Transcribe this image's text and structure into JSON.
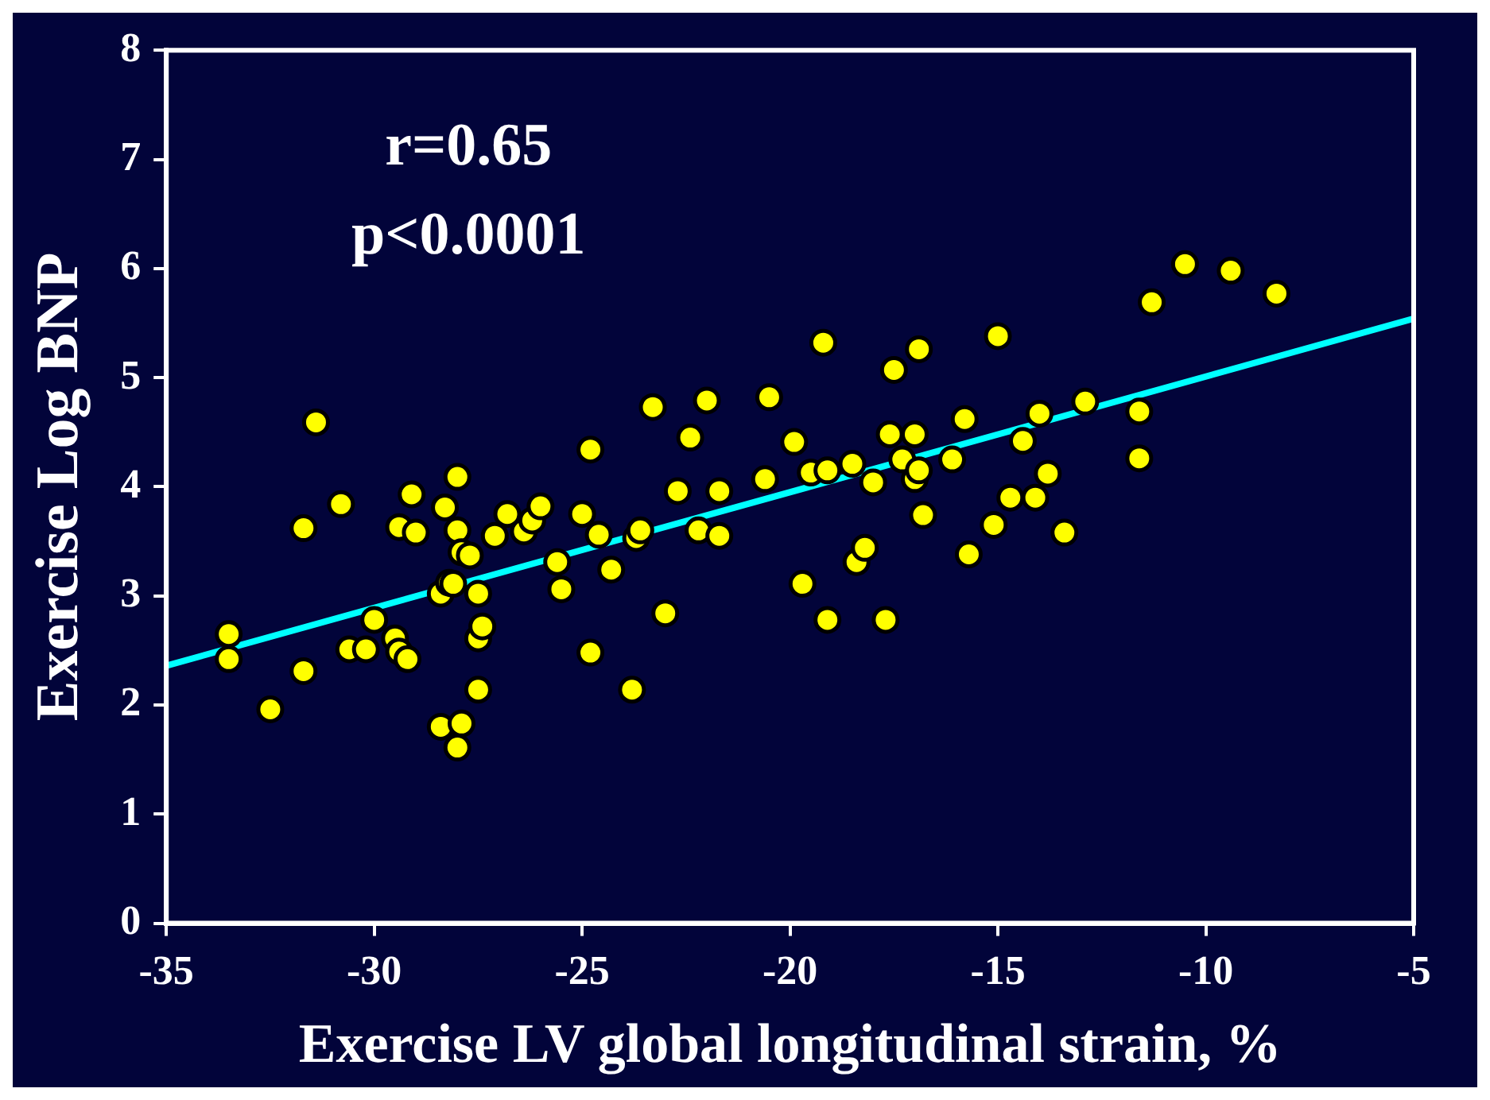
{
  "chart_data": {
    "type": "scatter",
    "xlabel": "Exercise LV global longitudinal strain, %",
    "ylabel": "Exercise Log BNP",
    "annotations": [
      "r=0.65",
      "p<0.0001"
    ],
    "xlim": [
      -35,
      -5
    ],
    "xticks": [
      -35,
      -30,
      -25,
      -20,
      -15,
      -10,
      -5
    ],
    "ylim": [
      0,
      8
    ],
    "yticks": [
      0,
      1,
      2,
      3,
      4,
      5,
      6,
      7,
      8
    ],
    "grid": false,
    "legend": false,
    "marker": "circle",
    "series": [
      {
        "color": "#ffff00",
        "x": [
          -33.5,
          -33.5,
          -32.5,
          -31.7,
          -31.7,
          -31.4,
          -30.8,
          -30.6,
          -30.2,
          -30.0,
          -29.5,
          -29.4,
          -29.4,
          -29.2,
          -29.1,
          -29.0,
          -28.4,
          -28.4,
          -28.3,
          -28.2,
          -28.0,
          -28.0,
          -27.9,
          -28.0,
          -28.1,
          -27.9,
          -27.7,
          -27.5,
          -27.5,
          -27.4,
          -27.5,
          -27.1,
          -26.8,
          -26.4,
          -26.2,
          -26.0,
          -25.6,
          -25.5,
          -25.0,
          -24.8,
          -24.8,
          -24.6,
          -24.3,
          -23.8,
          -23.7,
          -23.6,
          -23.3,
          -23.0,
          -22.7,
          -22.4,
          -22.2,
          -22.0,
          -21.7,
          -21.7,
          -20.6,
          -20.5,
          -19.9,
          -19.7,
          -19.5,
          -19.2,
          -19.1,
          -19.1,
          -18.5,
          -18.4,
          -18.2,
          -18.0,
          -17.7,
          -17.6,
          -17.5,
          -17.3,
          -17.0,
          -17.0,
          -16.9,
          -16.8,
          -16.9,
          -16.1,
          -15.8,
          -15.7,
          -15.1,
          -15.0,
          -14.7,
          -14.4,
          -14.1,
          -14.0,
          -13.8,
          -13.4,
          -12.9,
          -11.6,
          -11.6,
          -11.3,
          -10.5,
          -9.4,
          -8.3
        ],
        "values": [
          2.65,
          2.42,
          1.96,
          2.31,
          3.62,
          4.59,
          3.84,
          2.51,
          2.51,
          2.78,
          2.61,
          3.63,
          2.49,
          2.42,
          3.93,
          3.58,
          3.02,
          1.8,
          3.81,
          3.12,
          4.09,
          1.61,
          1.83,
          3.6,
          3.11,
          3.4,
          3.37,
          3.02,
          2.61,
          2.72,
          2.14,
          3.55,
          3.75,
          3.59,
          3.69,
          3.82,
          3.31,
          3.06,
          3.75,
          4.34,
          2.48,
          3.56,
          3.24,
          2.14,
          3.53,
          3.6,
          4.73,
          2.84,
          3.96,
          4.45,
          3.6,
          4.79,
          3.96,
          3.55,
          4.07,
          4.82,
          4.41,
          3.11,
          4.13,
          5.32,
          2.78,
          4.15,
          4.21,
          3.31,
          3.44,
          4.04,
          2.78,
          4.48,
          5.07,
          4.25,
          4.48,
          4.07,
          5.26,
          3.74,
          4.15,
          4.25,
          4.62,
          3.38,
          3.65,
          5.38,
          3.9,
          4.42,
          3.9,
          4.67,
          4.12,
          3.58,
          4.78,
          4.69,
          4.26,
          5.69,
          6.04,
          5.98,
          5.77
        ]
      },
      {
        "type": "line",
        "color": "#00ffff",
        "x": [
          -35,
          -5
        ],
        "values": [
          2.36,
          5.54
        ],
        "marker": "none"
      }
    ]
  }
}
